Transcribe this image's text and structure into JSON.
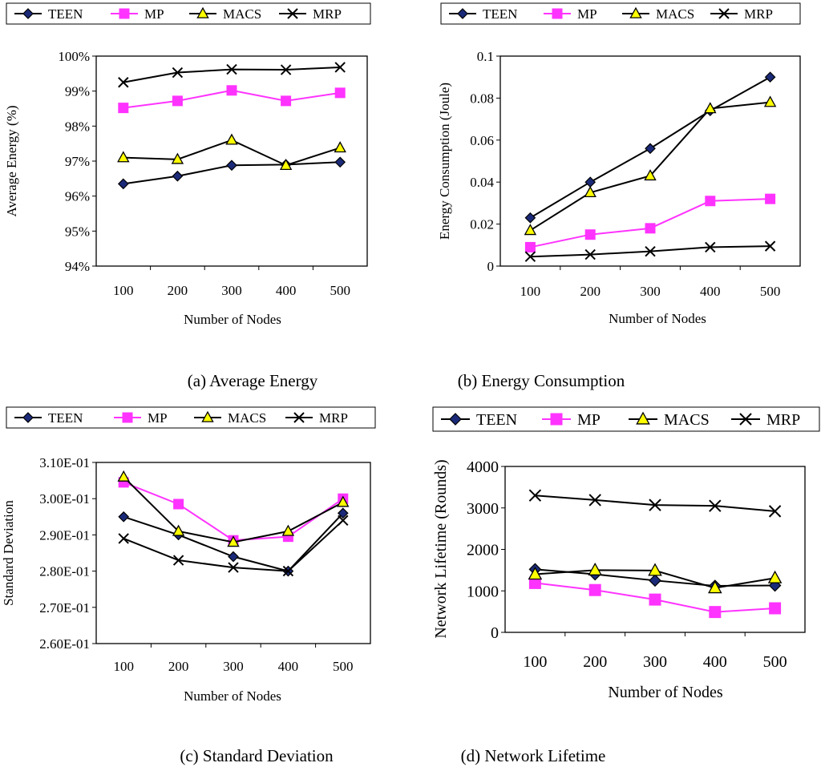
{
  "colors": {
    "TEEN": "#000000",
    "TEEN_fill": "#1b2a78",
    "MP": "#ff33ff",
    "MACS": "#000000",
    "MACS_fill": "#ffff00",
    "MRP": "#000000"
  },
  "chart_data": [
    {
      "type": "line",
      "caption": "(a) Average Energy",
      "xlabel": "Number of Nodes",
      "ylabel": "Average Energy (%)",
      "categories": [
        "100",
        "200",
        "300",
        "400",
        "500"
      ],
      "ylim": [
        94,
        100
      ],
      "yticks": [
        94,
        95,
        96,
        97,
        98,
        99,
        100
      ],
      "ytick_labels": [
        "94%",
        "95%",
        "96%",
        "97%",
        "98%",
        "99%",
        "100%"
      ],
      "legend": [
        "TEEN",
        "MP",
        "MACS",
        "MRP"
      ],
      "series": [
        {
          "name": "TEEN",
          "marker": "diamond",
          "values": [
            96.35,
            96.57,
            96.88,
            96.9,
            96.97
          ]
        },
        {
          "name": "MP",
          "marker": "square",
          "values": [
            98.52,
            98.72,
            99.02,
            98.72,
            98.95
          ]
        },
        {
          "name": "MACS",
          "marker": "triangle",
          "values": [
            97.1,
            97.05,
            97.6,
            96.88,
            97.38
          ]
        },
        {
          "name": "MRP",
          "marker": "x",
          "values": [
            99.25,
            99.53,
            99.62,
            99.61,
            99.68
          ]
        }
      ]
    },
    {
      "type": "line",
      "caption": "(b) Energy Consumption",
      "xlabel": "Number of Nodes",
      "ylabel": "Energy Consumption (Joule)",
      "categories": [
        "100",
        "200",
        "300",
        "400",
        "500"
      ],
      "ylim": [
        0,
        0.1
      ],
      "yticks": [
        0,
        0.02,
        0.04,
        0.06,
        0.08,
        0.1
      ],
      "ytick_labels": [
        "0",
        "0.02",
        "0.04",
        "0.06",
        "0.08",
        "0.1"
      ],
      "legend": [
        "TEEN",
        "MP",
        "MACS",
        "MRP"
      ],
      "series": [
        {
          "name": "TEEN",
          "marker": "diamond",
          "values": [
            0.023,
            0.04,
            0.056,
            0.074,
            0.09
          ]
        },
        {
          "name": "MP",
          "marker": "square",
          "values": [
            0.009,
            0.015,
            0.018,
            0.031,
            0.032
          ]
        },
        {
          "name": "MACS",
          "marker": "triangle",
          "values": [
            0.017,
            0.035,
            0.043,
            0.075,
            0.078
          ]
        },
        {
          "name": "MRP",
          "marker": "x",
          "values": [
            0.0045,
            0.0055,
            0.007,
            0.009,
            0.0095
          ]
        }
      ]
    },
    {
      "type": "line",
      "caption": "(c) Standard Deviation",
      "xlabel": "Number of Nodes",
      "ylabel": "Standard Deviation",
      "categories": [
        "100",
        "200",
        "300",
        "400",
        "500"
      ],
      "ylim": [
        0.26,
        0.31
      ],
      "yticks": [
        0.26,
        0.27,
        0.28,
        0.29,
        0.3,
        0.31
      ],
      "ytick_labels": [
        "2.60E-01",
        "2.70E-01",
        "2.80E-01",
        "2.90E-01",
        "3.00E-01",
        "3.10E-01"
      ],
      "legend": [
        "TEEN",
        "MP",
        "MACS",
        "MRP"
      ],
      "series": [
        {
          "name": "TEEN",
          "marker": "diamond",
          "values": [
            0.295,
            0.29,
            0.284,
            0.28,
            0.296
          ]
        },
        {
          "name": "MP",
          "marker": "square",
          "values": [
            0.3045,
            0.2985,
            0.2885,
            0.2895,
            0.3
          ]
        },
        {
          "name": "MACS",
          "marker": "triangle",
          "values": [
            0.306,
            0.291,
            0.288,
            0.291,
            0.299
          ]
        },
        {
          "name": "MRP",
          "marker": "x",
          "values": [
            0.289,
            0.283,
            0.281,
            0.28,
            0.294
          ]
        }
      ]
    },
    {
      "type": "line",
      "caption": "(d) Network Lifetime",
      "xlabel": "Number of Nodes",
      "ylabel": "Network Lifetime (Rounds)",
      "categories": [
        "100",
        "200",
        "300",
        "400",
        "500"
      ],
      "ylim": [
        0,
        4000
      ],
      "yticks": [
        0,
        1000,
        2000,
        3000,
        4000
      ],
      "ytick_labels": [
        "0",
        "1000",
        "2000",
        "3000",
        "4000"
      ],
      "legend": [
        "TEEN",
        "MP",
        "MACS",
        "MRP"
      ],
      "series": [
        {
          "name": "TEEN",
          "marker": "diamond",
          "values": [
            1520,
            1400,
            1250,
            1120,
            1130
          ]
        },
        {
          "name": "MP",
          "marker": "square",
          "values": [
            1190,
            1020,
            790,
            490,
            580
          ]
        },
        {
          "name": "MACS",
          "marker": "triangle",
          "values": [
            1400,
            1500,
            1490,
            1070,
            1310
          ]
        },
        {
          "name": "MRP",
          "marker": "x",
          "values": [
            3300,
            3190,
            3070,
            3050,
            2920
          ]
        }
      ]
    }
  ]
}
